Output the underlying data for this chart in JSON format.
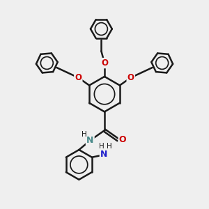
{
  "bg_color": "#efefef",
  "bond_color": "#1a1a1a",
  "oxygen_color": "#cc0000",
  "nitrogen_color": "#4a8a8a",
  "nitrogen2_color": "#2020cc",
  "bond_width": 1.8,
  "figsize": [
    3.0,
    3.0
  ],
  "dpi": 100,
  "xlim": [
    0,
    10
  ],
  "ylim": [
    0,
    10
  ]
}
